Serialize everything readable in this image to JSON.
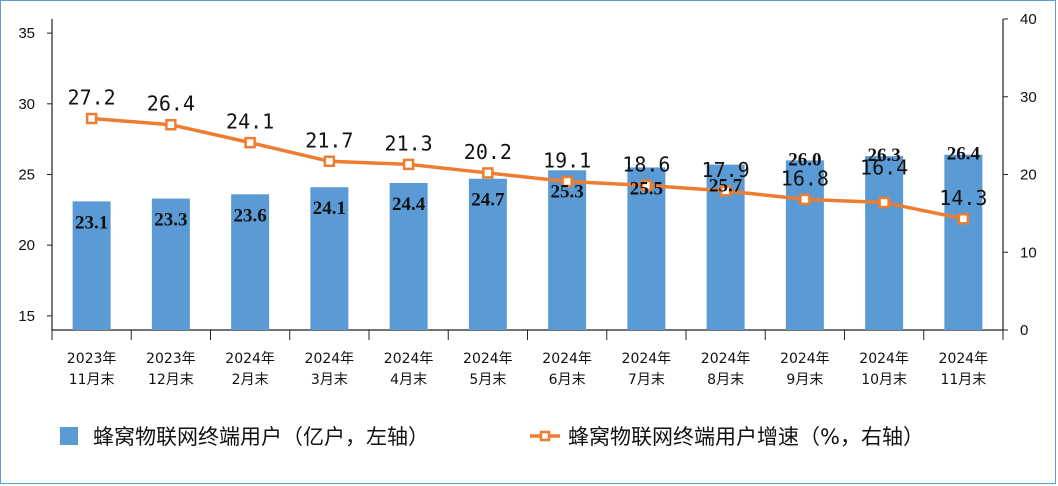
{
  "chart_data": {
    "type": "bar",
    "categories": [
      [
        "2023年",
        "11月末"
      ],
      [
        "2023年",
        "12月末"
      ],
      [
        "2024年",
        "2月末"
      ],
      [
        "2024年",
        "3月末"
      ],
      [
        "2024年",
        "4月末"
      ],
      [
        "2024年",
        "5月末"
      ],
      [
        "2024年",
        "6月末"
      ],
      [
        "2024年",
        "7月末"
      ],
      [
        "2024年",
        "8月末"
      ],
      [
        "2024年",
        "9月末"
      ],
      [
        "2024年",
        "10月末"
      ],
      [
        "2024年",
        "11月末"
      ]
    ],
    "series": [
      {
        "name": "蜂窝物联网终端用户（亿户，左轴）",
        "type": "bar",
        "axis": "left",
        "color": "#5b9bd5",
        "values": [
          23.1,
          23.3,
          23.6,
          24.1,
          24.4,
          24.7,
          25.3,
          25.5,
          25.7,
          26.0,
          26.3,
          26.4
        ],
        "labels": [
          "23.1",
          "23.3",
          "23.6",
          "24.1",
          "24.4",
          "24.7",
          "25.3",
          "25.5",
          "25.7",
          "26.0",
          "26.3",
          "26.4"
        ]
      },
      {
        "name": "蜂窝物联网终端用户增速（%，右轴）",
        "type": "line",
        "axis": "right",
        "color": "#ed7d31",
        "values": [
          27.2,
          26.4,
          24.1,
          21.7,
          21.3,
          20.2,
          19.1,
          18.6,
          17.9,
          16.8,
          16.4,
          14.3
        ],
        "labels": [
          "27.2",
          "26.4",
          "24.1",
          "21.7",
          "21.3",
          "20.2",
          "19.1",
          "18.6",
          "17.9",
          "16.8",
          "16.4",
          "14.3"
        ]
      }
    ],
    "y_left": {
      "ylim": [
        14,
        36
      ],
      "ticks": [
        "15",
        "20",
        "25",
        "30",
        "35"
      ],
      "tick_values": [
        15,
        20,
        25,
        30,
        35
      ]
    },
    "y_right": {
      "ylim": [
        0,
        40
      ],
      "ticks": [
        "0",
        "10",
        "20",
        "30",
        "40"
      ],
      "tick_values": [
        0,
        10,
        20,
        30,
        40
      ]
    },
    "legend_position": "bottom",
    "grid": false
  }
}
